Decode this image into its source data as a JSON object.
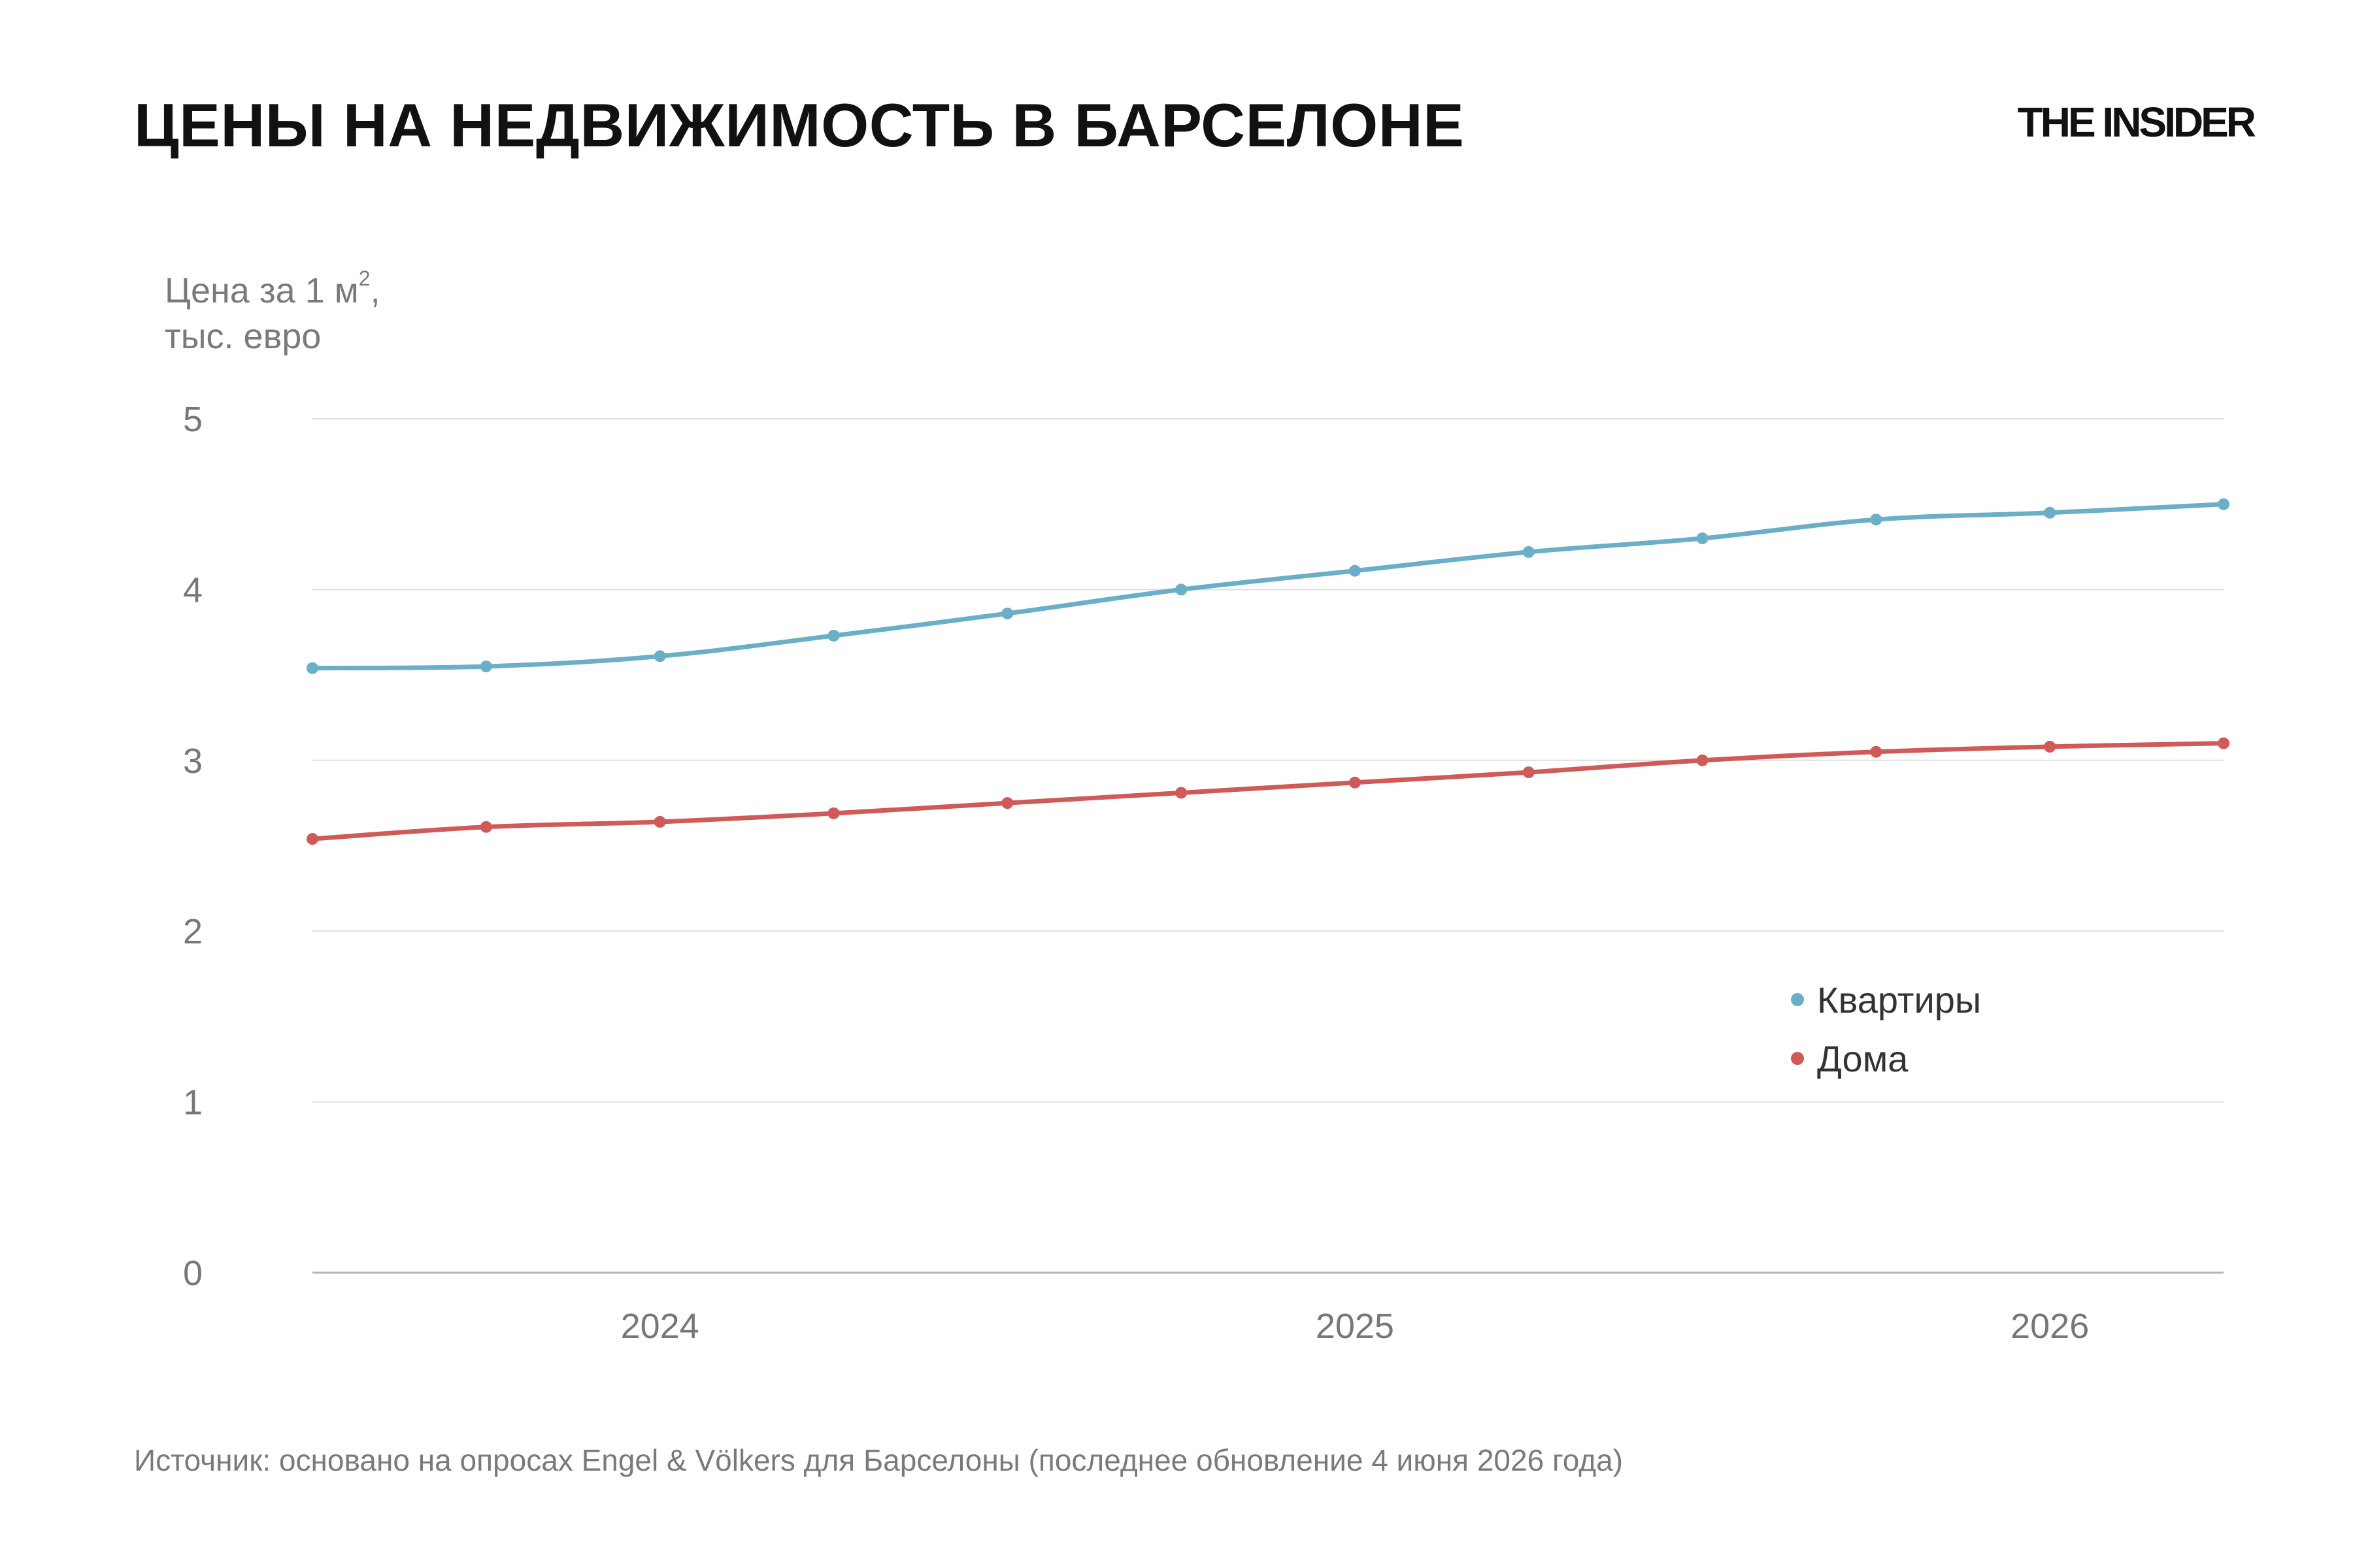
{
  "header": {
    "title": "ЦЕНЫ НА НЕДВИЖИМОСТЬ В БАРСЕЛОНЕ",
    "logo": "THE INSIDER"
  },
  "footer": {
    "source": "Источник: основано на опросах Engel & Völkers для Барселоны (последнее обновление 4 июня 2026 года)"
  },
  "chart_data": {
    "type": "line",
    "ylabel_line1": "Цена за 1 м",
    "ylabel_sup": "2",
    "ylabel_comma": ",",
    "ylabel_line2": "тыс. евро",
    "ylim": [
      0,
      5
    ],
    "yticks": [
      "0",
      "1",
      "2",
      "3",
      "4",
      "5"
    ],
    "xlim": [
      "2023-07",
      "2026-04"
    ],
    "xticks": [
      {
        "date": "2024-01",
        "label": "2024"
      },
      {
        "date": "2025-01",
        "label": "2025"
      },
      {
        "date": "2026-01",
        "label": "2026"
      }
    ],
    "x": [
      "2023-07",
      "2023-10",
      "2024-01",
      "2024-04",
      "2024-07",
      "2024-10",
      "2025-01",
      "2025-04",
      "2025-07",
      "2025-10",
      "2026-01",
      "2026-04"
    ],
    "series": [
      {
        "name": "Квартиры",
        "color": "#6aaec8",
        "values": [
          3.54,
          3.55,
          3.61,
          3.73,
          3.86,
          4.0,
          4.11,
          4.22,
          4.3,
          4.41,
          4.45,
          4.5
        ]
      },
      {
        "name": "Дома",
        "color": "#d05a57",
        "values": [
          2.54,
          2.61,
          2.64,
          2.69,
          2.75,
          2.81,
          2.87,
          2.93,
          3.0,
          3.05,
          3.08,
          3.1
        ]
      }
    ],
    "grid": true,
    "legend_position": "bottom-right"
  }
}
